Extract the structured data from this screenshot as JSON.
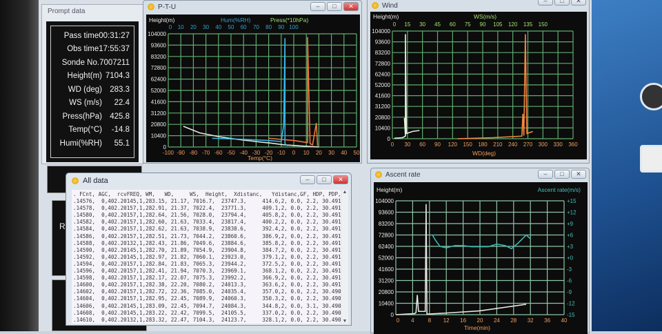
{
  "prompt": {
    "title": "Prompt data",
    "rows": [
      {
        "label": "Pass time",
        "value": "00:31:27"
      },
      {
        "label": "Obs time",
        "value": "17:55:37"
      },
      {
        "label": "Sonde No.",
        "value": "7007211"
      },
      {
        "label": "Height(m)",
        "value": "7104.3"
      },
      {
        "label": "WD (deg)",
        "value": "283.3"
      },
      {
        "label": "WS (m/s)",
        "value": "22.4"
      },
      {
        "label": "Press(hPa)",
        "value": "425.8"
      },
      {
        "label": "Temp(°C)",
        "value": "-14.8"
      },
      {
        "label": "Humi(%RH)",
        "value": "55.1"
      }
    ],
    "lower_label": "R"
  },
  "ptu": {
    "title": "P-T-U",
    "ylabel": "Height(m)",
    "top_label_hum": "Hum(%RH)",
    "top_label_press": "Press(*10hPa)",
    "xlabel": "Temp(°C)",
    "yticks": [
      "0",
      "10400",
      "20800",
      "31200",
      "41600",
      "52000",
      "62400",
      "72800",
      "83200",
      "93600",
      "104000"
    ],
    "xticks": [
      "-100",
      "-90",
      "-80",
      "-70",
      "-60",
      "-50",
      "-40",
      "-30",
      "-20",
      "-10",
      "0",
      "10",
      "20",
      "30",
      "40",
      "50"
    ],
    "topticks": [
      "0",
      "10",
      "20",
      "30",
      "40",
      "50",
      "60",
      "70",
      "80",
      "90",
      "100"
    ],
    "temp": [
      [
        -88,
        19000
      ],
      [
        -75,
        13000
      ],
      [
        -60,
        9500
      ],
      [
        -45,
        7000
      ],
      [
        -30,
        5000
      ],
      [
        -18,
        3500
      ],
      [
        -8,
        2000
      ],
      [
        5,
        1000
      ],
      [
        20,
        0
      ]
    ],
    "hum": [
      [
        35,
        8000
      ],
      [
        60,
        7000
      ],
      [
        80,
        6000
      ],
      [
        90,
        5000
      ],
      [
        92,
        20000
      ],
      [
        93,
        100000
      ],
      [
        93,
        3000
      ],
      [
        95,
        1000
      ]
    ],
    "press": [
      [
        80,
        8000
      ],
      [
        100,
        6000
      ],
      [
        111,
        4000
      ],
      [
        111,
        101000
      ],
      [
        113,
        3000
      ],
      [
        115,
        2000
      ],
      [
        118,
        22000
      ],
      [
        119,
        1000
      ]
    ],
    "colors": {
      "temp": "#e8e8e0",
      "hum": "#38b8e8",
      "press": "#f07838",
      "grid": "#5fae6e"
    }
  },
  "wind": {
    "title": "Wind",
    "ylabel": "Height(m)",
    "top_label": "WS(m/s)",
    "xlabel": "WD(deg)",
    "yticks": [
      "0",
      "10400",
      "20800",
      "31200",
      "41600",
      "52000",
      "62400",
      "72800",
      "83200",
      "93600",
      "104000"
    ],
    "xticks": [
      "0",
      "30",
      "60",
      "90",
      "120",
      "150",
      "180",
      "210",
      "240",
      "270",
      "300",
      "330",
      "360"
    ],
    "topticks": [
      "0",
      "15",
      "30",
      "45",
      "60",
      "75",
      "90",
      "105",
      "120",
      "135",
      "150"
    ],
    "ws": [
      [
        2,
        500
      ],
      [
        10,
        1000
      ],
      [
        13,
        2500
      ],
      [
        12,
        20000
      ],
      [
        13,
        3000
      ],
      [
        13,
        101000
      ],
      [
        14,
        5000
      ],
      [
        20,
        7000
      ],
      [
        27,
        8000
      ]
    ],
    "wd": [
      [
        130,
        0
      ],
      [
        200,
        1000
      ],
      [
        258,
        2500
      ],
      [
        260,
        24000
      ],
      [
        262,
        3000
      ],
      [
        265,
        101000
      ],
      [
        268,
        5000
      ],
      [
        280,
        7000
      ]
    ],
    "colors": {
      "ws": "#e8f0e0",
      "wd": "#f08840"
    }
  },
  "ascent": {
    "title": "Ascent rate",
    "ylabel": "Height(m)",
    "y2label": "Ascent rate(m/s)",
    "xlabel": "Time(min)",
    "yticks": [
      "0",
      "10400",
      "20800",
      "31200",
      "41600",
      "52000",
      "62400",
      "72800",
      "83200",
      "93600",
      "104000"
    ],
    "y2ticks": [
      "-15",
      "-12",
      "-9",
      "-6",
      "-3",
      "+0",
      "+3",
      "+6",
      "+9",
      "+12",
      "+15"
    ],
    "xticks": [
      "0",
      "4",
      "8",
      "12",
      "16",
      "20",
      "24",
      "28",
      "32",
      "36",
      "40"
    ],
    "height": [
      [
        0,
        0
      ],
      [
        4.5,
        1000
      ],
      [
        4.8,
        2000
      ],
      [
        5.1,
        18000
      ],
      [
        5.4,
        3000
      ],
      [
        7,
        3000
      ],
      [
        7.2,
        101000
      ],
      [
        7.4,
        500
      ],
      [
        12,
        1500
      ],
      [
        20,
        3500
      ],
      [
        31,
        9500
      ]
    ],
    "rate": [
      [
        8.7,
        6
      ],
      [
        9.5,
        4.5
      ],
      [
        10.5,
        3
      ],
      [
        12,
        2.6
      ],
      [
        14,
        3.2
      ],
      [
        16,
        3.2
      ],
      [
        18,
        2.9
      ],
      [
        20,
        2.9
      ],
      [
        22,
        2.9
      ],
      [
        24,
        3.6
      ],
      [
        26,
        3.2
      ],
      [
        27.5,
        2.4
      ],
      [
        29,
        3.8
      ],
      [
        31,
        6
      ],
      [
        32,
        5
      ]
    ],
    "colors": {
      "height": "#e6e6e0",
      "rate": "#3ab8b0"
    }
  },
  "alldata": {
    "title": "All data",
    "header": ". FCnt, AGC,  rcvFREQ, WM,   WD,     WS,  Height,  Xdistanc,   Ydistanc,GF, HDP, PDP, GeodetL",
    "rows": [
      ".14576,  0,402.20145,1,283.15, 21.17, 7016.7,  23747.3,     414.6,2, 0.0, 2.2, 30.491",
      ".14578,  0,402.20157,1,282.91, 21.37, 7022.4,  23771.3,     409.1,2, 0.0, 2.2, 30.491",
      ".14580,  0,402.20157,1,282.64, 21.56, 7028.0,  23794.4,     405.8,2, 0.0, 2.2, 30.491",
      ".14582,  0,402.20157,1,282.60, 21.63, 7033.4,  23817.4,     400.2,2, 0.0, 2.2, 30.491",
      ".14584,  0,402.20157,1,282.62, 21.63, 7038.9,  23838.6,     392.4,2, 0.0, 2.2, 30.491",
      ".14586,  0,402.20157,1,282.51, 21.73, 7044.2,  23860.6,     386.9,2, 0.0, 2.2, 30.491",
      ".14588,  0,402.20132,1,282.43, 21.86, 7049.6,  23884.6,     385.8,2, 0.0, 2.2, 30.491",
      ".14590,  0,402.20145,1,282.70, 21.89, 7054.9,  23904.8,     384.7,2, 0.0, 2.2, 30.491",
      ".14592,  0,402.20145,1,282.97, 21.82, 7060.1,  23923.0,     379.1,2, 0.0, 2.2, 30.491",
      ".14594,  0,402.20157,1,282.84, 21.83, 7065.3,  23944.2,     372.5,2, 0.0, 2.2, 30.491",
      ".14596,  0,402.20157,1,282.41, 21.94, 7070.3,  23969.1,     368.1,2, 0.0, 2.2, 30.491",
      ".14598,  0,402.20157,1,282.17, 22.07, 7075.3,  23992.2,     366.9,2, 0.0, 2.2, 30.491",
      ".14600,  0,402.20157,1,282.38, 22.20, 7080.2,  24013.3,     363.6,2, 0.0, 2.2, 30.491",
      ".14602,  0,402.20157,1,282.72, 22.36, 7085.0,  24035.4,     357.0,2, 0.0, 2.2, 30.490",
      ".14604,  0,402.20157,1,282.95, 22.45, 7089.9,  24060.3,     350.3,2, 0.0, 2.2, 30.490",
      ".14606,  0,402.20145,1,283.09, 22.45, 7094.7,  24084.3,     344.8,2, 0.0, 3.1, 30.490",
      ".14608,  0,402.20145,1,283.22, 22.42, 7099.5,  24105.5,     337.0,2, 0.0, 2.2, 30.490",
      ".14610,  0,402.20132,1,283.32, 22.47, 7104.3,  24123.7,     328.1,2, 0.0, 2.2, 30.490"
    ]
  },
  "window_controls": {
    "minimize": "–",
    "maximize": "□",
    "close": "✕"
  },
  "scroll": {
    "up": "▲",
    "down": "▼"
  }
}
